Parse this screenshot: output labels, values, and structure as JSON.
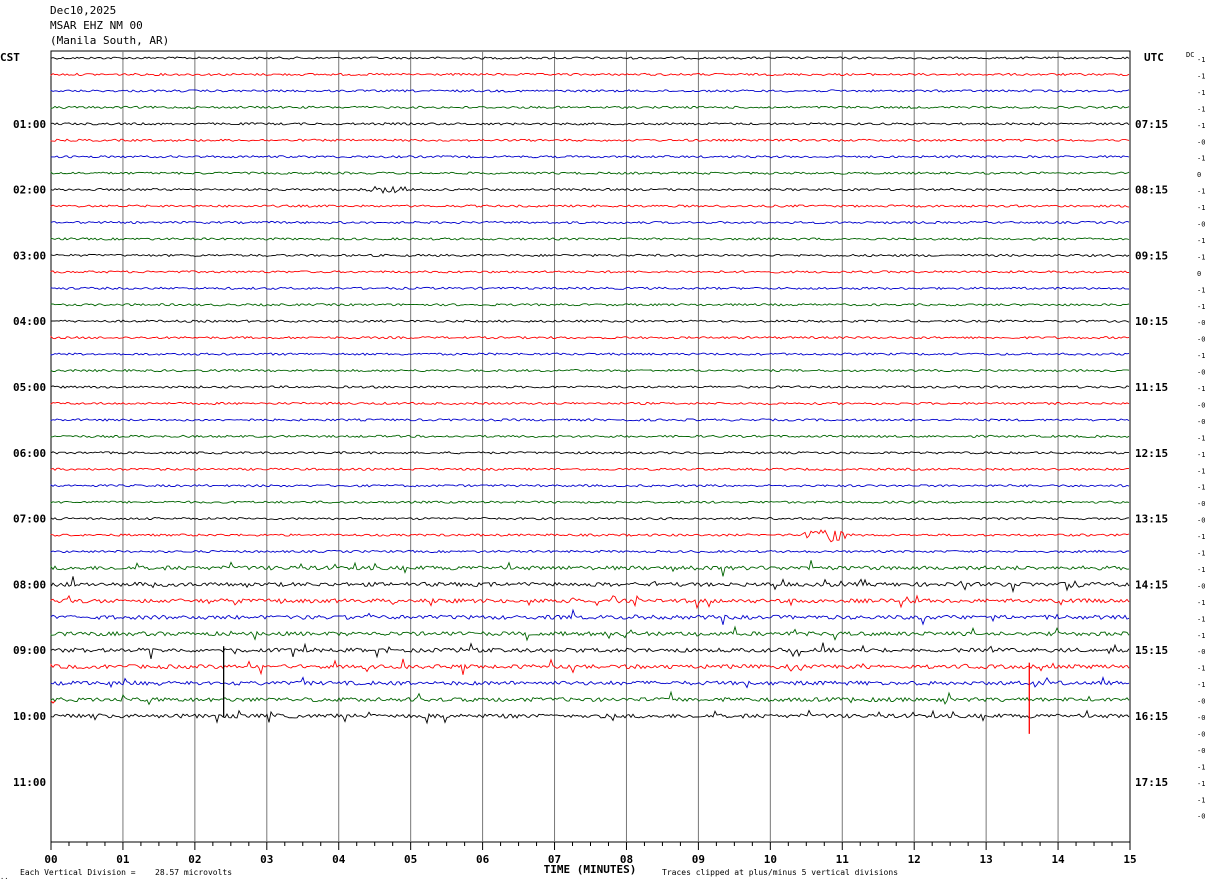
{
  "header": {
    "date": "Dec10,2025",
    "station": "MSAR EHZ NM 00",
    "location": "(Manila South, AR)"
  },
  "footer": {
    "scale_label": "Each Vertical Division =",
    "scale_value": "28.57 microvolts",
    "clip_note": "Traces clipped at plus/minus 5 vertical divisions"
  },
  "chart_data": {
    "type": "line",
    "title": "",
    "xlabel": "TIME (MINUTES)",
    "ylabel_left": "CST",
    "ylabel_right": "UTC",
    "dc_label": "DC",
    "xlim": [
      0,
      15
    ],
    "x_ticks": [
      "00",
      "01",
      "02",
      "03",
      "04",
      "05",
      "06",
      "07",
      "08",
      "09",
      "10",
      "11",
      "12",
      "13",
      "14",
      "15"
    ],
    "grid": true,
    "rows_per_hour": 4,
    "minutes_per_row": 15,
    "total_rows": 48,
    "traces_drawn": 41,
    "trace_colors": [
      "#000000",
      "#ff0000",
      "#0000cc",
      "#006400"
    ],
    "left_time_labels": [
      "01:00",
      "02:00",
      "03:00",
      "04:00",
      "05:00",
      "06:00",
      "07:00",
      "08:00",
      "09:00",
      "10:00",
      "11:00"
    ],
    "right_time_labels": [
      "07:15",
      "08:15",
      "09:15",
      "10:15",
      "11:15",
      "12:15",
      "13:15",
      "14:15",
      "15:15",
      "16:15",
      "17:15"
    ],
    "dc_offsets": [
      "-1",
      "-1",
      "-1",
      "-1",
      "-1",
      "-0",
      "-1",
      "0",
      "-1",
      "-1",
      "-0",
      "-1",
      "-1",
      "0",
      "-1",
      "-1",
      "-0",
      "-0",
      "-1",
      "-0",
      "-1",
      "-0",
      "-0",
      "-1",
      "-1",
      "-1",
      "-1",
      "-0",
      "-0",
      "-1",
      "-1",
      "-1",
      "-0",
      "-1",
      "-1",
      "-1",
      "-0",
      "-1",
      "-1",
      "-0",
      "-0",
      "-0",
      "-0",
      "-1",
      "-1",
      "-1",
      "-0"
    ],
    "events": [
      {
        "row": 8,
        "minute_start": 3.5,
        "minute_end": 5.0,
        "peak_minute": 4.7,
        "amplitude_divisions": 1.2
      },
      {
        "row": 29,
        "minute_start": 10.1,
        "minute_end": 11.3,
        "peak_minute": 10.8,
        "amplitude_divisions": 2.5
      },
      {
        "row": 36,
        "minute": 2.4,
        "amplitude_divisions": 5,
        "clipped": true
      },
      {
        "row": 37,
        "minute": 13.6,
        "amplitude_divisions": 5,
        "clipped": true
      }
    ]
  }
}
